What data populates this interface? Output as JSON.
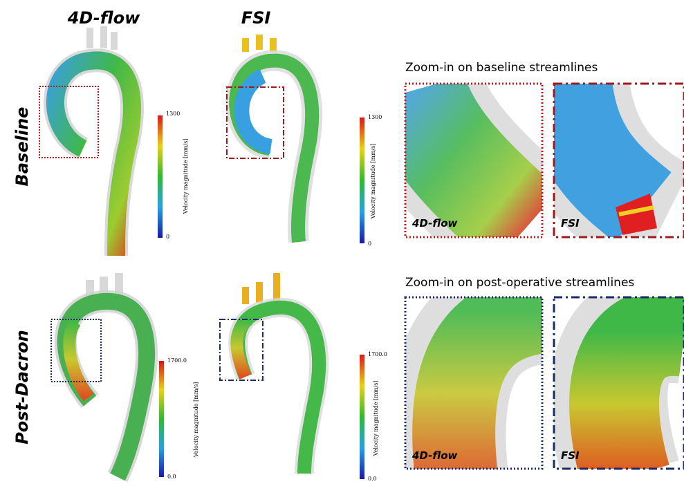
{
  "columns": [
    "4D-flow",
    "FSI"
  ],
  "rows": [
    {
      "label": "Baseline",
      "zoom_title": "Zoom-in on baseline streamlines",
      "colorbars": [
        {
          "title": "Velocity magnitude [mm/s]",
          "max": "1300",
          "min": "0"
        },
        {
          "title": "Velocity magnitude [mm/s]",
          "max": "1300",
          "min": "0"
        }
      ],
      "zoom_panels": [
        "4D-flow",
        "FSI"
      ]
    },
    {
      "label": "Post-Dacron",
      "zoom_title": "Zoom-in on post-operative streamlines",
      "colorbars": [
        {
          "title": "Velocity magnitude [mm/s]",
          "max": "1700.0",
          "min": "0.0"
        },
        {
          "title": "Velocity magnitude [mm/s]",
          "max": "1700.0",
          "min": "0.0"
        }
      ],
      "zoom_panels": [
        "4D-flow",
        "FSI"
      ]
    }
  ]
}
